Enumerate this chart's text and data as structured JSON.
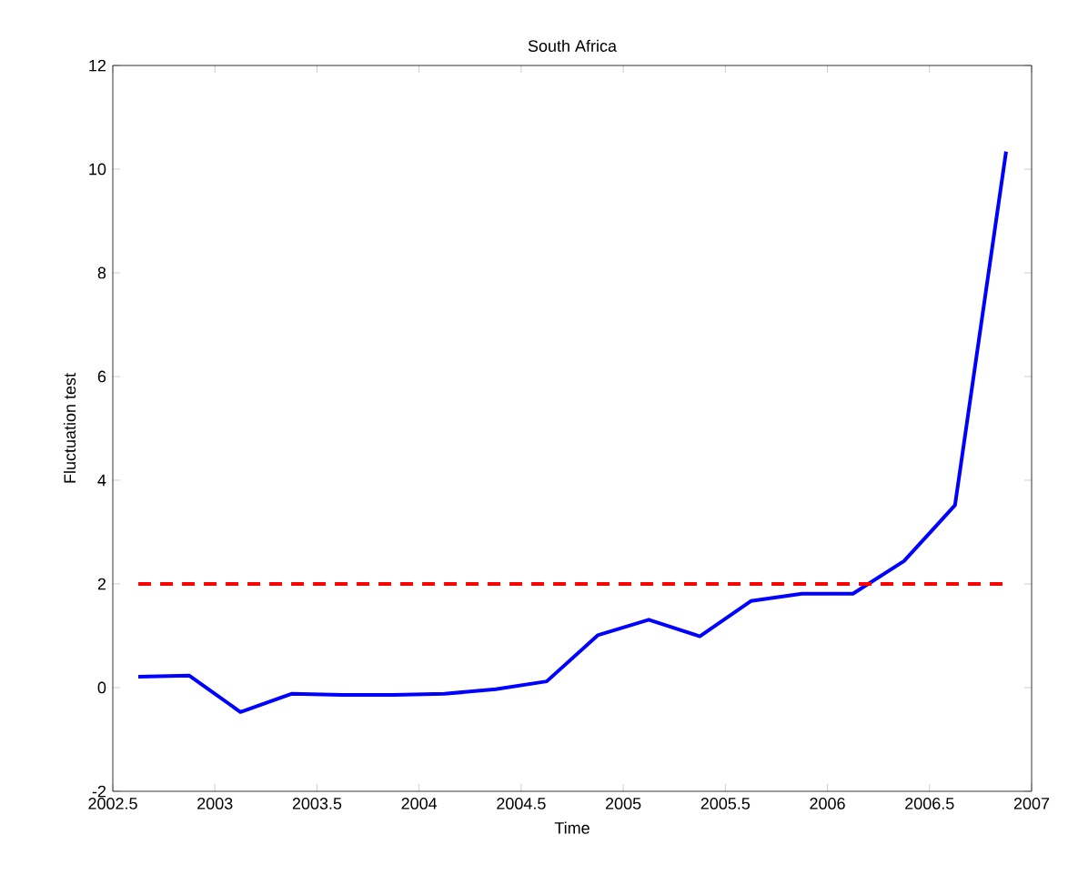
{
  "chart_data": {
    "type": "line",
    "title": "South Africa",
    "xlabel": "Time",
    "ylabel": "Fluctuation test",
    "x": [
      2002.625,
      2002.875,
      2003.125,
      2003.375,
      2003.625,
      2003.875,
      2004.125,
      2004.375,
      2004.625,
      2004.875,
      2005.125,
      2005.375,
      2005.625,
      2005.875,
      2006.125,
      2006.375,
      2006.625,
      2006.875
    ],
    "series": [
      {
        "color": "#0000ff",
        "values": [
          0.21,
          0.23,
          -0.47,
          -0.12,
          -0.14,
          -0.14,
          -0.12,
          -0.03,
          0.12,
          1.01,
          1.31,
          0.99,
          1.67,
          1.81,
          1.81,
          2.44,
          3.52,
          10.34
        ]
      }
    ],
    "xlim": [
      2002.5,
      2007
    ],
    "xticks": [
      2002.5,
      2003,
      2003.5,
      2004,
      2004.5,
      2005,
      2005.5,
      2006,
      2006.5,
      2007
    ],
    "ylim": [
      -2,
      12
    ],
    "yticks": [
      -2,
      0,
      2,
      4,
      6,
      8,
      10,
      12
    ],
    "ref_lines": [
      {
        "axis": "y",
        "value": 2,
        "color": "#ff0000",
        "line_style": "dashed"
      }
    ],
    "grid": false,
    "line_style": "solid",
    "marker": "none"
  }
}
